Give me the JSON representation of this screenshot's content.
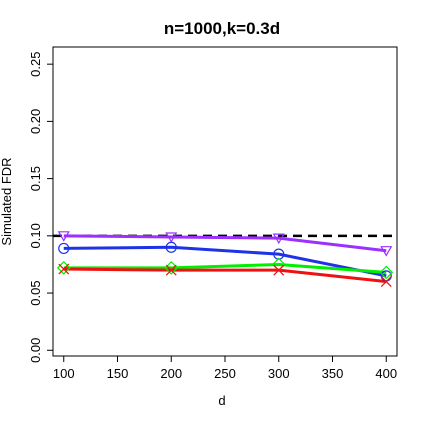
{
  "chart_data": {
    "type": "line",
    "title": "n=1000,k=0.3d",
    "xlabel": "d",
    "ylabel": "Simulated FDR",
    "x": [
      100,
      200,
      300,
      400
    ],
    "xlim": [
      90,
      410
    ],
    "ylim": [
      -0.005,
      0.265
    ],
    "xticks": [
      "100",
      "150",
      "200",
      "250",
      "300",
      "350",
      "400"
    ],
    "yticks": [
      "0.00",
      "0.05",
      "0.10",
      "0.15",
      "0.20",
      "0.25"
    ],
    "reference_line": {
      "y": 0.1,
      "style": "dashed",
      "color": "#000000"
    },
    "grid": false,
    "series": [
      {
        "values": [
          0.1,
          0.099,
          0.098,
          0.087
        ],
        "color": "#9b30ff",
        "marker": "triangle-down"
      },
      {
        "values": [
          0.089,
          0.09,
          0.084,
          0.065
        ],
        "color": "#1f33e6",
        "marker": "circle"
      },
      {
        "values": [
          0.072,
          0.072,
          0.075,
          0.068
        ],
        "color": "#00ee00",
        "marker": "diamond"
      },
      {
        "values": [
          0.071,
          0.07,
          0.07,
          0.06
        ],
        "color": "#ee1111",
        "marker": "x"
      }
    ]
  }
}
